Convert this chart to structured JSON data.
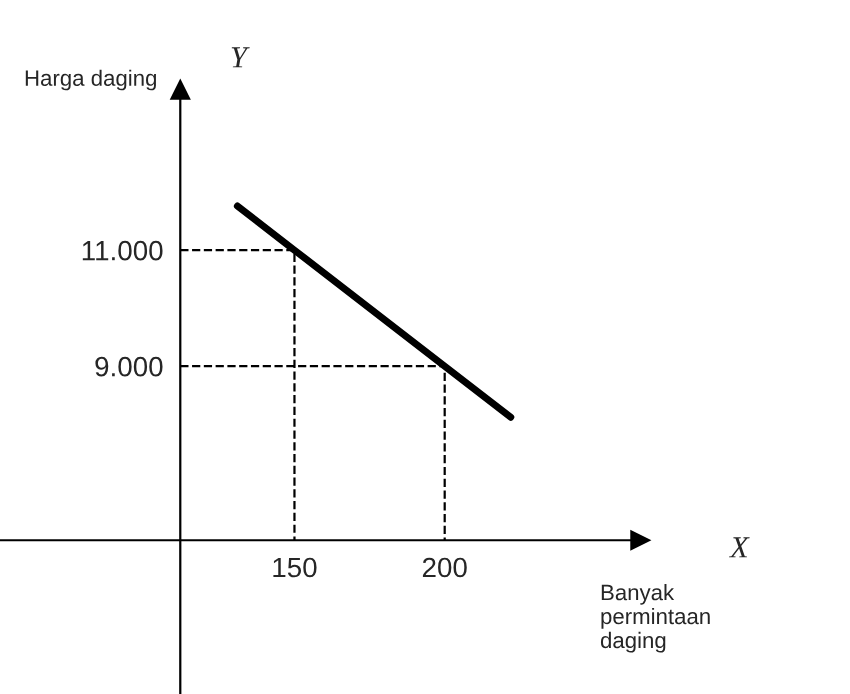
{
  "chart_data": {
    "type": "line",
    "xlabel": "Banyak permintaan daging",
    "ylabel": "Harga daging",
    "annotations": [
      "X",
      "Y"
    ],
    "xlim": [
      52,
      265
    ],
    "ylim": [
      3350,
      13760
    ],
    "xticks": [
      {
        "value": 112,
        "label": null
      },
      150,
      200
    ],
    "yticks": [
      {
        "value": 6000,
        "label": null
      },
      {
        "value": 9000,
        "label": "9.000"
      },
      {
        "value": 11000,
        "label": "11.000"
      }
    ],
    "grid": false,
    "legend": false,
    "series": [
      {
        "color": "#000000",
        "line_style": "solid",
        "x": [
          131,
          150,
          200,
          222
        ],
        "values": [
          11760,
          11000,
          9000,
          8120
        ]
      },
      {
        "color": "#000000",
        "line_style": "dashed",
        "x": [
          112,
          150,
          150
        ],
        "values": [
          11000,
          11000,
          6000
        ]
      },
      {
        "color": "#000000",
        "line_style": "dashed",
        "x": [
          112,
          200,
          200
        ],
        "values": [
          9000,
          9000,
          6000
        ]
      }
    ]
  }
}
